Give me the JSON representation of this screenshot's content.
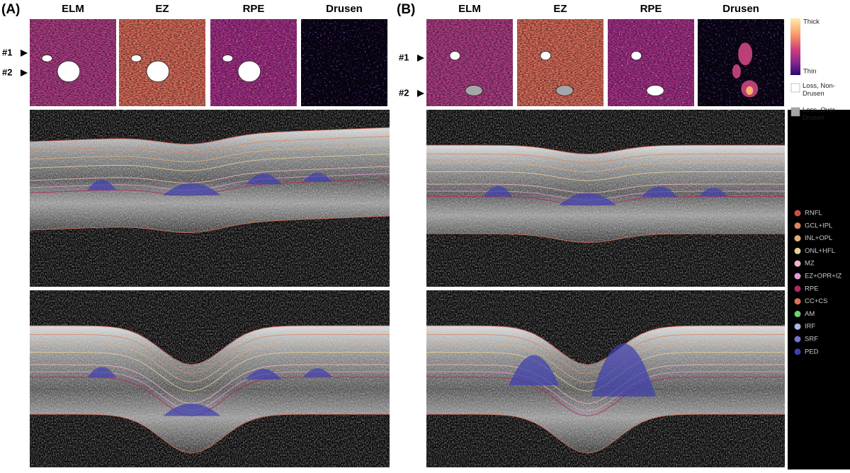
{
  "panels": [
    {
      "label": "(A)",
      "maps": [
        "ELM",
        "EZ",
        "RPE",
        "Drusen"
      ],
      "markers": [
        "#1",
        "#2"
      ]
    },
    {
      "label": "(B)",
      "maps": [
        "ELM",
        "EZ",
        "RPE",
        "Drusen"
      ],
      "markers": [
        "#1",
        "#2"
      ]
    }
  ],
  "colorbar": {
    "top": "Thick",
    "bottom": "Thin"
  },
  "loss_legend": [
    {
      "label": "Loss, Non-Drusen",
      "color": "#ffffff"
    },
    {
      "label": "Loss, Over Drusen",
      "color": "#a6a6a6"
    }
  ],
  "layers": [
    {
      "name": "RNFL",
      "color": "#c9514a"
    },
    {
      "name": "GCL+IPL",
      "color": "#d9875e"
    },
    {
      "name": "INL+OPL",
      "color": "#e0ad75"
    },
    {
      "name": "ONL+HFL",
      "color": "#e6cf92"
    },
    {
      "name": "MZ",
      "color": "#f0b6c2"
    },
    {
      "name": "EZ+OPR+IZ",
      "color": "#e59adb"
    },
    {
      "name": "RPE",
      "color": "#b5275a"
    },
    {
      "name": "CC+CS",
      "color": "#d9735a"
    },
    {
      "name": "AM",
      "color": "#6fd072"
    },
    {
      "name": "IRF",
      "color": "#a9b7e2"
    },
    {
      "name": "SRF",
      "color": "#6f76cf"
    },
    {
      "name": "PED",
      "color": "#3d3fb0"
    }
  ]
}
